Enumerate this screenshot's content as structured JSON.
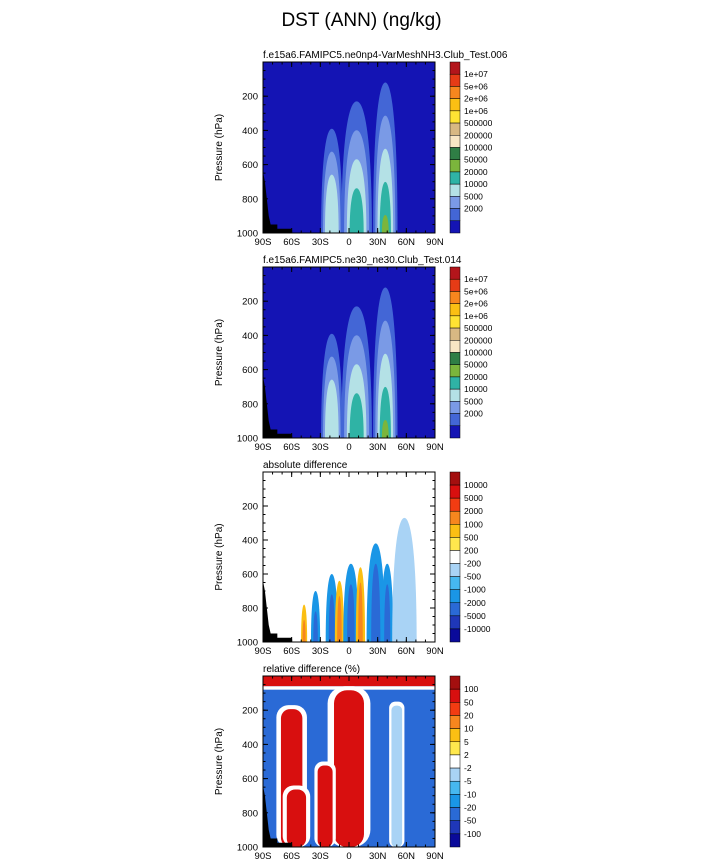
{
  "page_title": "DST (ANN) (ng/kg)",
  "chart_data": [
    {
      "type": "contour",
      "title": "f.e15a6.FAMIPC5.ne0np4-VarMeshNH3.Club_Test.006",
      "xlabel": "",
      "ylabel": "Pressure (hPa)",
      "x_ticks": [
        "90S",
        "60S",
        "30S",
        "0",
        "30N",
        "60N",
        "90N"
      ],
      "y_ticks": [
        "200",
        "400",
        "600",
        "800",
        "1000"
      ],
      "xlim": [
        -90,
        90
      ],
      "ylim": [
        1000,
        0
      ],
      "colorbar": {
        "labels": [
          "1e+07",
          "5e+06",
          "2e+06",
          "1e+06",
          "500000",
          "200000",
          "100000",
          "50000",
          "20000",
          "10000",
          "5000",
          "2000"
        ],
        "colors": [
          "#b3151b",
          "#e63b16",
          "#f7861e",
          "#fbbf13",
          "#ffe333",
          "#d8b883",
          "#f8e6c4",
          "#2f7e45",
          "#7bb53c",
          "#2fb3a5",
          "#b4e1e6",
          "#7a9ae6",
          "#4366d6",
          "#1414b4"
        ]
      },
      "background": "#1414b4",
      "features": [
        {
          "lat": -18,
          "p_top": 390,
          "width": 7,
          "levels": 3
        },
        {
          "lat": 8,
          "p_top": 230,
          "width": 10,
          "levels": 4
        },
        {
          "lat": 38,
          "p_top": 120,
          "width": 8,
          "levels": 5
        }
      ]
    },
    {
      "type": "contour",
      "title": "f.e15a6.FAMIPC5.ne30_ne30.Club_Test.014",
      "xlabel": "",
      "ylabel": "Pressure (hPa)",
      "x_ticks": [
        "90S",
        "60S",
        "30S",
        "0",
        "30N",
        "60N",
        "90N"
      ],
      "y_ticks": [
        "200",
        "400",
        "600",
        "800",
        "1000"
      ],
      "xlim": [
        -90,
        90
      ],
      "ylim": [
        1000,
        0
      ],
      "colorbar": {
        "labels": [
          "1e+07",
          "5e+06",
          "2e+06",
          "1e+06",
          "500000",
          "200000",
          "100000",
          "50000",
          "20000",
          "10000",
          "5000",
          "2000"
        ],
        "colors": [
          "#b3151b",
          "#e63b16",
          "#f7861e",
          "#fbbf13",
          "#ffe333",
          "#d8b883",
          "#f8e6c4",
          "#2f7e45",
          "#7bb53c",
          "#2fb3a5",
          "#b4e1e6",
          "#7a9ae6",
          "#4366d6",
          "#1414b4"
        ]
      },
      "background": "#1414b4",
      "features": [
        {
          "lat": -18,
          "p_top": 390,
          "width": 7,
          "levels": 3
        },
        {
          "lat": 8,
          "p_top": 230,
          "width": 10,
          "levels": 4
        },
        {
          "lat": 38,
          "p_top": 120,
          "width": 8,
          "levels": 5
        }
      ]
    },
    {
      "type": "contour",
      "title": "absolute difference",
      "xlabel": "",
      "ylabel": "Pressure (hPa)",
      "x_ticks": [
        "90S",
        "60S",
        "30S",
        "0",
        "30N",
        "60N",
        "90N"
      ],
      "y_ticks": [
        "200",
        "400",
        "600",
        "800",
        "1000"
      ],
      "xlim": [
        -90,
        90
      ],
      "ylim": [
        1000,
        0
      ],
      "colorbar": {
        "labels": [
          "10000",
          "5000",
          "2000",
          "1000",
          "500",
          "200",
          "-200",
          "-500",
          "-1000",
          "-2000",
          "-5000",
          "-10000"
        ],
        "colors": [
          "#a30f0f",
          "#d80f0f",
          "#f23c12",
          "#f7861e",
          "#fbbf13",
          "#ffe84d",
          "#ffffff",
          "#a9d3f5",
          "#46b8f0",
          "#1a96e6",
          "#2a6ad6",
          "#1f37b8",
          "#0a0a9a"
        ]
      },
      "background": "#ffffff",
      "features": [
        {
          "lat": -47,
          "p_top": 780,
          "width": 2,
          "kind": "pos"
        },
        {
          "lat": -35,
          "p_top": 700,
          "width": 3,
          "kind": "neg"
        },
        {
          "lat": -18,
          "p_top": 600,
          "width": 4,
          "kind": "neg"
        },
        {
          "lat": -10,
          "p_top": 640,
          "width": 3,
          "kind": "pos"
        },
        {
          "lat": 2,
          "p_top": 540,
          "width": 5,
          "kind": "neg"
        },
        {
          "lat": 12,
          "p_top": 560,
          "width": 3,
          "kind": "pos"
        },
        {
          "lat": 28,
          "p_top": 420,
          "width": 6,
          "kind": "neg"
        },
        {
          "lat": 40,
          "p_top": 540,
          "width": 4,
          "kind": "neg"
        },
        {
          "lat": 58,
          "p_top": 270,
          "width": 8,
          "kind": "lightneg"
        }
      ]
    },
    {
      "type": "contour",
      "title": "relative difference (%)",
      "xlabel": "",
      "ylabel": "Pressure (hPa)",
      "x_ticks": [
        "90S",
        "60S",
        "30S",
        "0",
        "30N",
        "60N",
        "90N"
      ],
      "y_ticks": [
        "200",
        "400",
        "600",
        "800",
        "1000"
      ],
      "xlim": [
        -90,
        90
      ],
      "ylim": [
        1000,
        0
      ],
      "colorbar": {
        "labels": [
          "100",
          "50",
          "20",
          "10",
          "5",
          "2",
          "-2",
          "-5",
          "-10",
          "-20",
          "-50",
          "-100"
        ],
        "colors": [
          "#a30f0f",
          "#d80f0f",
          "#f23c12",
          "#f7861e",
          "#fbbf13",
          "#ffe84d",
          "#ffffff",
          "#a9d3f5",
          "#46b8f0",
          "#1a96e6",
          "#2a6ad6",
          "#1f37b8",
          "#0a0a9a"
        ]
      },
      "background": "#2a6ad6",
      "features": [
        {
          "lat": 0,
          "p_top": 60,
          "width": 14,
          "kind": "pos"
        },
        {
          "lat": -60,
          "p_top": 170,
          "width": 10,
          "kind": "pos"
        },
        {
          "lat": -55,
          "p_top": 640,
          "width": 9,
          "kind": "pos"
        },
        {
          "lat": -25,
          "p_top": 500,
          "width": 7,
          "kind": "pos"
        },
        {
          "lat": 50,
          "p_top": 150,
          "width": 5,
          "kind": "lightneg"
        }
      ]
    }
  ]
}
